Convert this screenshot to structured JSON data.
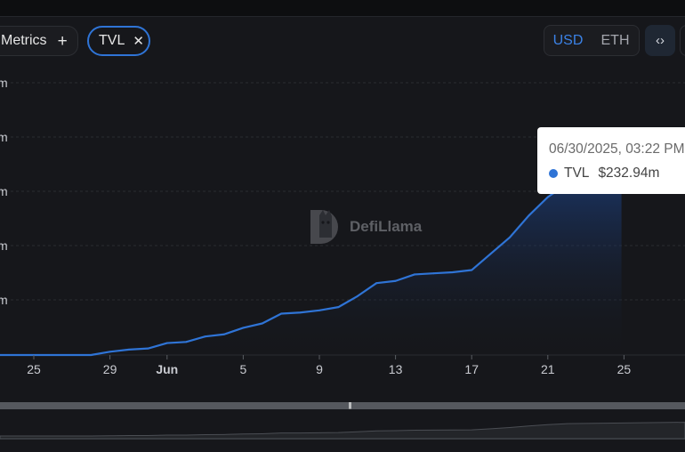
{
  "toolbar": {
    "metrics_label": "Metrics",
    "add_icon": "plus-icon",
    "chip_label": "TVL",
    "chip_close_icon": "close-icon",
    "currency_options": [
      "USD",
      "ETH"
    ],
    "currency_selected": "USD",
    "embed_icon": "code-icon"
  },
  "watermark": {
    "text": "DefiLlama"
  },
  "tooltip": {
    "date": "06/30/2025, 03:22 PM",
    "series": "TVL",
    "value": "$232.94m"
  },
  "colors": {
    "line": "#2f74d6",
    "background": "#16171b",
    "active_currency": "#3b82e6"
  },
  "chart_data": {
    "type": "area",
    "title": "",
    "xlabel": "",
    "ylabel": "",
    "grid": true,
    "x_tick_labels": [
      "25",
      "29",
      "Jun",
      "5",
      "9",
      "13",
      "17",
      "21",
      "25"
    ],
    "x_tick_days": [
      25,
      29,
      32,
      36,
      40,
      44,
      48,
      52,
      56
    ],
    "y_tick_labels": [
      "m",
      "m",
      "m",
      "m",
      "m",
      ""
    ],
    "ylim": [
      0,
      250
    ],
    "x_note": "x values are days counted from May 1 (32 = Jun 1)",
    "series": [
      {
        "name": "TVL",
        "x": [
          24,
          25,
          26,
          27,
          28,
          29,
          30,
          31,
          32,
          33,
          34,
          35,
          36,
          37,
          38,
          39,
          40,
          41,
          42,
          43,
          44,
          45,
          46,
          47,
          48,
          49,
          50,
          51,
          52,
          53,
          54
        ],
        "values": [
          0,
          0,
          0,
          0,
          0,
          3,
          5,
          6,
          11,
          12,
          17,
          19,
          25,
          29,
          38,
          39,
          41,
          44,
          54,
          66,
          68,
          74,
          75,
          76,
          78,
          93,
          108,
          128,
          145,
          157,
          160
        ]
      }
    ]
  }
}
